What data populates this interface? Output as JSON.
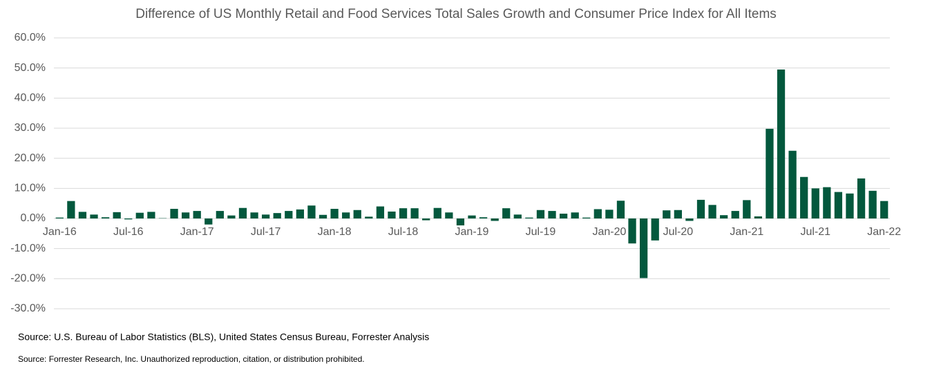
{
  "chart_data": {
    "type": "bar",
    "title": "Difference of US Monthly Retail and Food Services Total Sales Growth and Consumer Price Index for All Items",
    "categories": [
      "Jan-16",
      null,
      null,
      null,
      null,
      null,
      "Jul-16",
      null,
      null,
      null,
      null,
      null,
      "Jan-17",
      null,
      null,
      null,
      null,
      null,
      "Jul-17",
      null,
      null,
      null,
      null,
      null,
      "Jan-18",
      null,
      null,
      null,
      null,
      null,
      "Jul-18",
      null,
      null,
      null,
      null,
      null,
      "Jan-19",
      null,
      null,
      null,
      null,
      null,
      "Jul-19",
      null,
      null,
      null,
      null,
      null,
      "Jan-20",
      null,
      null,
      null,
      null,
      null,
      "Jul-20",
      null,
      null,
      null,
      null,
      null,
      "Jan-21",
      null,
      null,
      null,
      null,
      null,
      "Jul-21",
      null,
      null,
      null,
      null,
      null,
      "Jan-22"
    ],
    "values": [
      0.3,
      5.8,
      2.2,
      1.3,
      0.4,
      2.1,
      -0.3,
      1.9,
      2.2,
      0.1,
      3.2,
      2.0,
      2.5,
      -2.0,
      2.5,
      1.0,
      3.5,
      2.0,
      1.3,
      1.8,
      2.5,
      3.0,
      4.3,
      1.2,
      3.2,
      2.0,
      2.8,
      0.6,
      4.0,
      2.3,
      3.4,
      3.4,
      -0.6,
      3.5,
      2.0,
      -2.3,
      1.0,
      0.4,
      -0.8,
      3.4,
      1.3,
      0.3,
      2.8,
      2.5,
      1.6,
      2.0,
      0.3,
      3.1,
      2.9,
      5.9,
      -8.3,
      -19.8,
      -7.3,
      2.7,
      2.8,
      -0.8,
      6.2,
      4.5,
      1.1,
      2.5,
      6.1,
      0.7,
      29.8,
      49.5,
      22.5,
      13.8,
      10.0,
      10.4,
      8.8,
      8.3,
      13.3,
      9.2,
      5.8
    ],
    "color": "#03583d",
    "ylim": [
      -30,
      60
    ],
    "yticks": [
      {
        "value": -30,
        "label": "-30.0%"
      },
      {
        "value": -20,
        "label": "-20.0%"
      },
      {
        "value": -10,
        "label": "-10.0%"
      },
      {
        "value": 0,
        "label": "0.0%"
      },
      {
        "value": 10,
        "label": "10.0%"
      },
      {
        "value": 20,
        "label": "20.0%"
      },
      {
        "value": 30,
        "label": "30.0%"
      },
      {
        "value": 40,
        "label": "40.0%"
      },
      {
        "value": 50,
        "label": "50.0%"
      },
      {
        "value": 60,
        "label": "60.0%"
      }
    ],
    "grid": true,
    "notes": [
      "Source: U.S. Bureau of Labor Statistics (BLS), United States Census Bureau, Forrester Analysis",
      "Source: Forrester Research, Inc. Unauthorized reproduction, citation, or distribution prohibited."
    ]
  }
}
